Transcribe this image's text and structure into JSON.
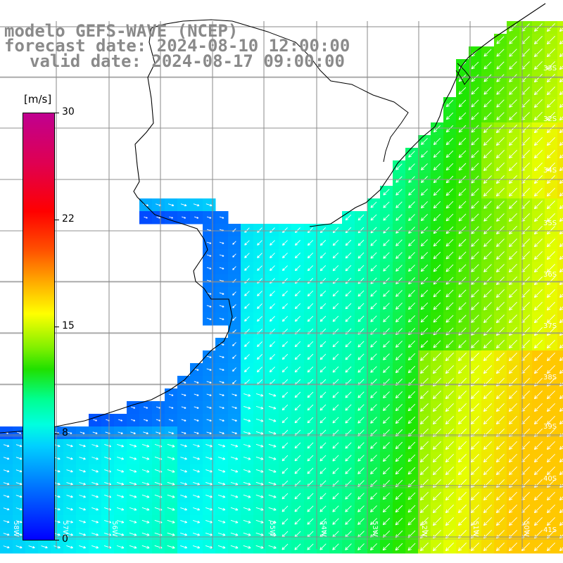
{
  "title_lines": {
    "model": "modelo GEFS-WAVE (NCEP)",
    "forecast": "forecast date: 2024-08-10 12:00:00",
    "valid": "valid date: 2024-08-17 09:00:00"
  },
  "colorbar": {
    "unit": "[m/s]",
    "ticks": [
      "30",
      "22",
      "15",
      "8",
      "0"
    ],
    "tick_values": [
      30,
      22,
      15,
      8,
      0
    ],
    "range": [
      0,
      30
    ],
    "colors": [
      "#0000ff",
      "#0070ff",
      "#00d0ff",
      "#00ffe0",
      "#00ff90",
      "#20e000",
      "#80f000",
      "#ffff00",
      "#ffb000",
      "#ff5000",
      "#ff0000",
      "#e00050",
      "#c00090"
    ]
  },
  "map": {
    "lat_labels": [
      "34S",
      "35S",
      "36S",
      "37S",
      "38S",
      "39S",
      "40S",
      "41S",
      "33S",
      "32S"
    ],
    "lon_labels": [
      "55W",
      "54W",
      "53W",
      "52W",
      "51W",
      "50W",
      "58W",
      "57W",
      "56W"
    ],
    "land_color": "#ffffff",
    "grid_color": "#888888",
    "arrow_color": "#ffffff",
    "legend_arrow": "→"
  }
}
